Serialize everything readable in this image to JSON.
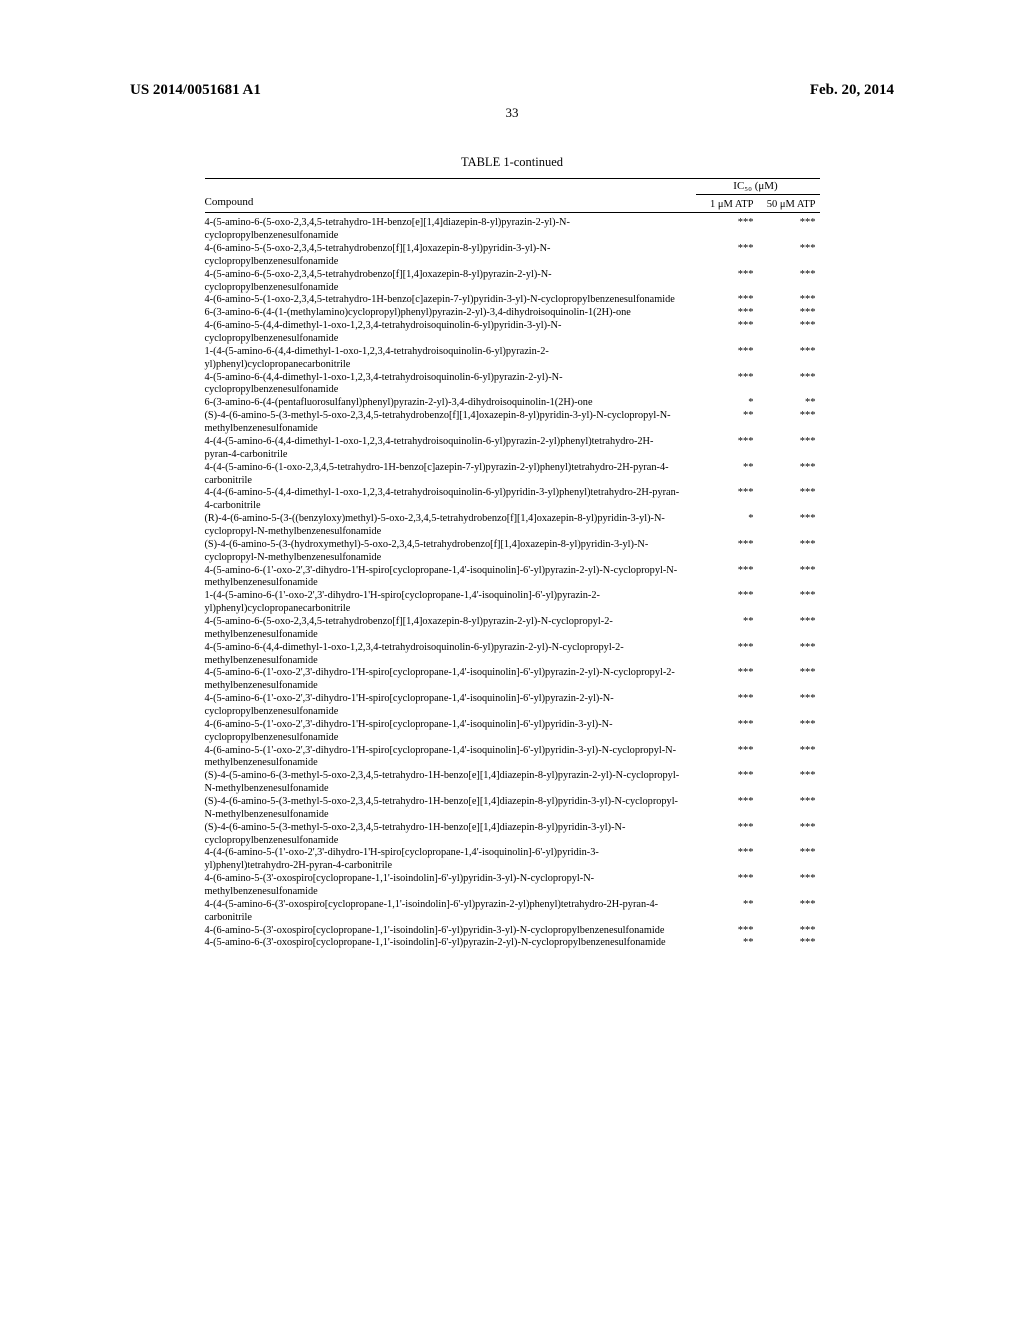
{
  "header": {
    "left": "US 2014/0051681 A1",
    "right": "Feb. 20, 2014"
  },
  "page_number": "33",
  "table": {
    "caption": "TABLE 1-continued",
    "ic50_label": "IC₅₀ (μM)",
    "compound_header": "Compound",
    "col_1uM": "1 μM ATP",
    "col_50uM": "50 μM ATP",
    "rows": [
      {
        "name": "4-(5-amino-6-(5-oxo-2,3,4,5-tetrahydro-1H-benzo[e][1,4]diazepin-8-yl)pyrazin-2-yl)-N-cyclopropylbenzenesulfonamide",
        "ic1": "***",
        "ic50": "***"
      },
      {
        "name": "4-(6-amino-5-(5-oxo-2,3,4,5-tetrahydrobenzo[f][1,4]oxazepin-8-yl)pyridin-3-yl)-N-cyclopropylbenzenesulfonamide",
        "ic1": "***",
        "ic50": "***"
      },
      {
        "name": "4-(5-amino-6-(5-oxo-2,3,4,5-tetrahydrobenzo[f][1,4]oxazepin-8-yl)pyrazin-2-yl)-N-cyclopropylbenzenesulfonamide",
        "ic1": "***",
        "ic50": "***"
      },
      {
        "name": "4-(6-amino-5-(1-oxo-2,3,4,5-tetrahydro-1H-benzo[c]azepin-7-yl)pyridin-3-yl)-N-cyclopropylbenzenesulfonamide",
        "ic1": "***",
        "ic50": "***"
      },
      {
        "name": "6-(3-amino-6-(4-(1-(methylamino)cyclopropyl)phenyl)pyrazin-2-yl)-3,4-dihydroisoquinolin-1(2H)-one",
        "ic1": "***",
        "ic50": "***"
      },
      {
        "name": "4-(6-amino-5-(4,4-dimethyl-1-oxo-1,2,3,4-tetrahydroisoquinolin-6-yl)pyridin-3-yl)-N-cyclopropylbenzenesulfonamide",
        "ic1": "***",
        "ic50": "***"
      },
      {
        "name": "1-(4-(5-amino-6-(4,4-dimethyl-1-oxo-1,2,3,4-tetrahydroisoquinolin-6-yl)pyrazin-2-yl)phenyl)cyclopropanecarbonitrile",
        "ic1": "***",
        "ic50": "***"
      },
      {
        "name": "4-(5-amino-6-(4,4-dimethyl-1-oxo-1,2,3,4-tetrahydroisoquinolin-6-yl)pyrazin-2-yl)-N-cyclopropylbenzenesulfonamide",
        "ic1": "***",
        "ic50": "***"
      },
      {
        "name": "6-(3-amino-6-(4-(pentafluorosulfanyl)phenyl)pyrazin-2-yl)-3,4-dihydroisoquinolin-1(2H)-one",
        "ic1": "*",
        "ic50": "**"
      },
      {
        "name": "(S)-4-(6-amino-5-(3-methyl-5-oxo-2,3,4,5-tetrahydrobenzo[f][1,4]oxazepin-8-yl)pyridin-3-yl)-N-cyclopropyl-N-methylbenzenesulfonamide",
        "ic1": "**",
        "ic50": "***"
      },
      {
        "name": "4-(4-(5-amino-6-(4,4-dimethyl-1-oxo-1,2,3,4-tetrahydroisoquinolin-6-yl)pyrazin-2-yl)phenyl)tetrahydro-2H-pyran-4-carbonitrile",
        "ic1": "***",
        "ic50": "***"
      },
      {
        "name": "4-(4-(5-amino-6-(1-oxo-2,3,4,5-tetrahydro-1H-benzo[c]azepin-7-yl)pyrazin-2-yl)phenyl)tetrahydro-2H-pyran-4-carbonitrile",
        "ic1": "**",
        "ic50": "***"
      },
      {
        "name": "4-(4-(6-amino-5-(4,4-dimethyl-1-oxo-1,2,3,4-tetrahydroisoquinolin-6-yl)pyridin-3-yl)phenyl)tetrahydro-2H-pyran-4-carbonitrile",
        "ic1": "***",
        "ic50": "***"
      },
      {
        "name": "(R)-4-(6-amino-5-(3-((benzyloxy)methyl)-5-oxo-2,3,4,5-tetrahydrobenzo[f][1,4]oxazepin-8-yl)pyridin-3-yl)-N-cyclopropyl-N-methylbenzenesulfonamide",
        "ic1": "*",
        "ic50": "***"
      },
      {
        "name": "(S)-4-(6-amino-5-(3-(hydroxymethyl)-5-oxo-2,3,4,5-tetrahydrobenzo[f][1,4]oxazepin-8-yl)pyridin-3-yl)-N-cyclopropyl-N-methylbenzenesulfonamide",
        "ic1": "***",
        "ic50": "***"
      },
      {
        "name": "4-(5-amino-6-(1'-oxo-2',3'-dihydro-1'H-spiro[cyclopropane-1,4'-isoquinolin]-6'-yl)pyrazin-2-yl)-N-cyclopropyl-N-methylbenzenesulfonamide",
        "ic1": "***",
        "ic50": "***"
      },
      {
        "name": "1-(4-(5-amino-6-(1'-oxo-2',3'-dihydro-1'H-spiro[cyclopropane-1,4'-isoquinolin]-6'-yl)pyrazin-2-yl)phenyl)cyclopropanecarbonitrile",
        "ic1": "***",
        "ic50": "***"
      },
      {
        "name": "4-(5-amino-6-(5-oxo-2,3,4,5-tetrahydrobenzo[f][1,4]oxazepin-8-yl)pyrazin-2-yl)-N-cyclopropyl-2-methylbenzenesulfonamide",
        "ic1": "**",
        "ic50": "***"
      },
      {
        "name": "4-(5-amino-6-(4,4-dimethyl-1-oxo-1,2,3,4-tetrahydroisoquinolin-6-yl)pyrazin-2-yl)-N-cyclopropyl-2-methylbenzenesulfonamide",
        "ic1": "***",
        "ic50": "***"
      },
      {
        "name": "4-(5-amino-6-(1'-oxo-2',3'-dihydro-1'H-spiro[cyclopropane-1,4'-isoquinolin]-6'-yl)pyrazin-2-yl)-N-cyclopropyl-2-methylbenzenesulfonamide",
        "ic1": "***",
        "ic50": "***"
      },
      {
        "name": "4-(5-amino-6-(1'-oxo-2',3'-dihydro-1'H-spiro[cyclopropane-1,4'-isoquinolin]-6'-yl)pyrazin-2-yl)-N-cyclopropylbenzenesulfonamide",
        "ic1": "***",
        "ic50": "***"
      },
      {
        "name": "4-(6-amino-5-(1'-oxo-2',3'-dihydro-1'H-spiro[cyclopropane-1,4'-isoquinolin]-6'-yl)pyridin-3-yl)-N-cyclopropylbenzenesulfonamide",
        "ic1": "***",
        "ic50": "***"
      },
      {
        "name": "4-(6-amino-5-(1'-oxo-2',3'-dihydro-1'H-spiro[cyclopropane-1,4'-isoquinolin]-6'-yl)pyridin-3-yl)-N-cyclopropyl-N-methylbenzenesulfonamide",
        "ic1": "***",
        "ic50": "***"
      },
      {
        "name": "(S)-4-(5-amino-6-(3-methyl-5-oxo-2,3,4,5-tetrahydro-1H-benzo[e][1,4]diazepin-8-yl)pyrazin-2-yl)-N-cyclopropyl-N-methylbenzenesulfonamide",
        "ic1": "***",
        "ic50": "***"
      },
      {
        "name": "(S)-4-(6-amino-5-(3-methyl-5-oxo-2,3,4,5-tetrahydro-1H-benzo[e][1,4]diazepin-8-yl)pyridin-3-yl)-N-cyclopropyl-N-methylbenzenesulfonamide",
        "ic1": "***",
        "ic50": "***"
      },
      {
        "name": "(S)-4-(6-amino-5-(3-methyl-5-oxo-2,3,4,5-tetrahydro-1H-benzo[e][1,4]diazepin-8-yl)pyridin-3-yl)-N-cyclopropylbenzenesulfonamide",
        "ic1": "***",
        "ic50": "***"
      },
      {
        "name": "4-(4-(6-amino-5-(1'-oxo-2',3'-dihydro-1'H-spiro[cyclopropane-1,4'-isoquinolin]-6'-yl)pyridin-3-yl)phenyl)tetrahydro-2H-pyran-4-carbonitrile",
        "ic1": "***",
        "ic50": "***"
      },
      {
        "name": "4-(6-amino-5-(3'-oxospiro[cyclopropane-1,1'-isoindolin]-6'-yl)pyridin-3-yl)-N-cyclopropyl-N-methylbenzenesulfonamide",
        "ic1": "***",
        "ic50": "***"
      },
      {
        "name": "4-(4-(5-amino-6-(3'-oxospiro[cyclopropane-1,1'-isoindolin]-6'-yl)pyrazin-2-yl)phenyl)tetrahydro-2H-pyran-4-carbonitrile",
        "ic1": "**",
        "ic50": "***"
      },
      {
        "name": "4-(6-amino-5-(3'-oxospiro[cyclopropane-1,1'-isoindolin]-6'-yl)pyridin-3-yl)-N-cyclopropylbenzenesulfonamide",
        "ic1": "***",
        "ic50": "***"
      },
      {
        "name": "4-(5-amino-6-(3'-oxospiro[cyclopropane-1,1'-isoindolin]-6'-yl)pyrazin-2-yl)-N-cyclopropylbenzenesulfonamide",
        "ic1": "**",
        "ic50": "***"
      }
    ]
  }
}
